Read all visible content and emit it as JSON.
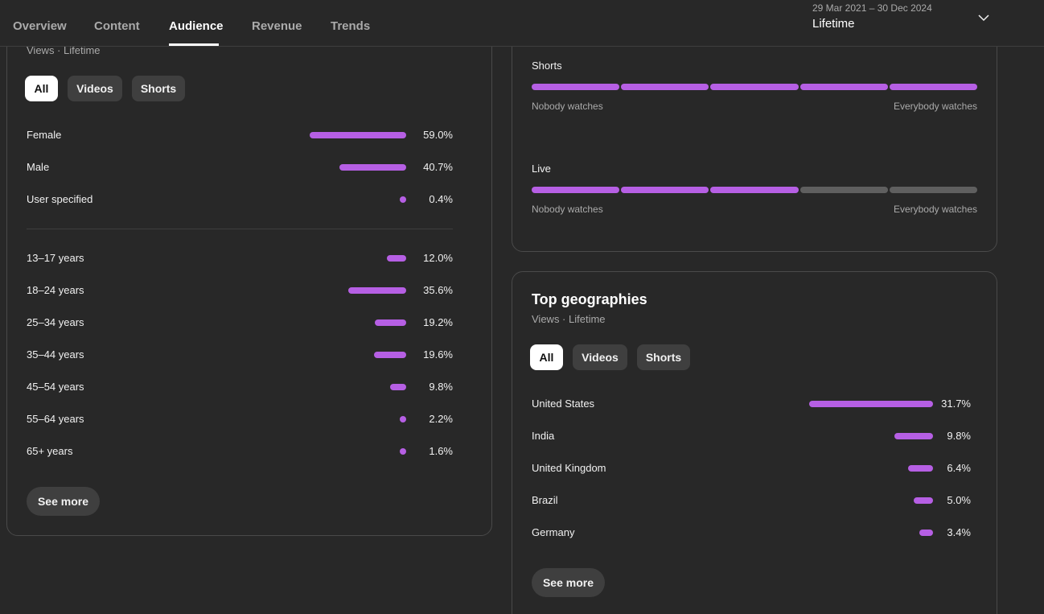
{
  "tabs": [
    "Overview",
    "Content",
    "Audience",
    "Revenue",
    "Trends"
  ],
  "active_tab": "Audience",
  "date_range": "29 Mar 2021 – 30 Dec 2024",
  "range_label": "Lifetime",
  "left_card": {
    "subtitle": "Views · Lifetime",
    "chips": [
      "All",
      "Videos",
      "Shorts"
    ],
    "selected_chip": "All",
    "gender": [
      {
        "label": "Female",
        "value": "59.0%",
        "fraction": 0.59
      },
      {
        "label": "Male",
        "value": "40.7%",
        "fraction": 0.407
      },
      {
        "label": "User specified",
        "value": "0.4%",
        "fraction": 0.004
      }
    ],
    "age": [
      {
        "label": "13–17 years",
        "value": "12.0%",
        "fraction": 0.12
      },
      {
        "label": "18–24 years",
        "value": "35.6%",
        "fraction": 0.356
      },
      {
        "label": "25–34 years",
        "value": "19.2%",
        "fraction": 0.192
      },
      {
        "label": "35–44 years",
        "value": "19.6%",
        "fraction": 0.196
      },
      {
        "label": "45–54 years",
        "value": "9.8%",
        "fraction": 0.098
      },
      {
        "label": "55–64 years",
        "value": "2.2%",
        "fraction": 0.022
      },
      {
        "label": "65+ years",
        "value": "1.6%",
        "fraction": 0.016
      }
    ],
    "see_more": "See more"
  },
  "watch_card": {
    "rows": [
      {
        "label": "Shorts",
        "filled_segments": 5,
        "total_segments": 5,
        "low": "Nobody watches",
        "high": "Everybody watches"
      },
      {
        "label": "Live",
        "filled_segments": 3,
        "total_segments": 5,
        "low": "Nobody watches",
        "high": "Everybody watches"
      }
    ]
  },
  "geo_card": {
    "title": "Top geographies",
    "subtitle": "Views · Lifetime",
    "chips": [
      "All",
      "Videos",
      "Shorts"
    ],
    "selected_chip": "All",
    "rows": [
      {
        "label": "United States",
        "value": "31.7%",
        "fraction": 0.317
      },
      {
        "label": "India",
        "value": "9.8%",
        "fraction": 0.098
      },
      {
        "label": "United Kingdom",
        "value": "6.4%",
        "fraction": 0.064
      },
      {
        "label": "Brazil",
        "value": "5.0%",
        "fraction": 0.05
      },
      {
        "label": "Germany",
        "value": "3.4%",
        "fraction": 0.034
      }
    ],
    "see_more": "See more"
  },
  "colors": {
    "bar": "#b65fe4",
    "bar_off": "#5f5f5f",
    "background": "#282828"
  }
}
